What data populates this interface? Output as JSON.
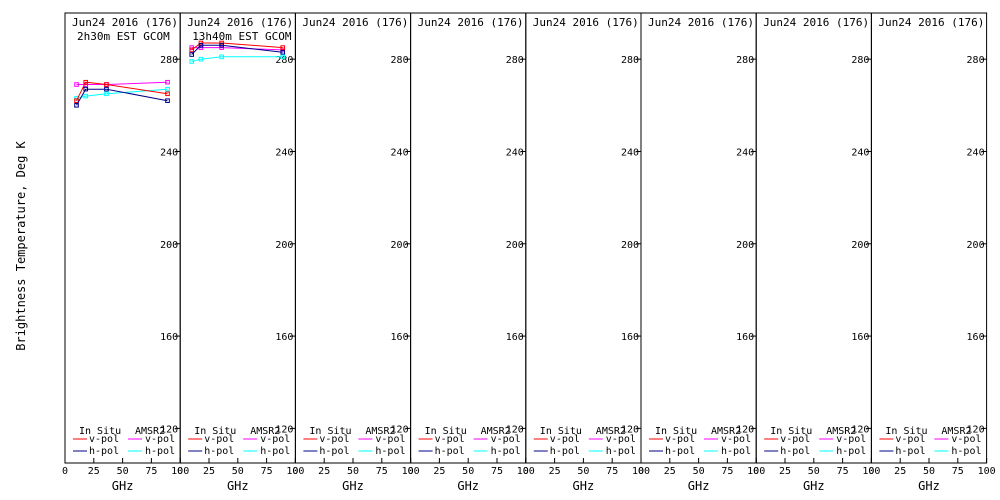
{
  "chart_data": {
    "type": "line",
    "ylabel": "Brightness Temperature, Deg K",
    "xlabel": "GHz",
    "xlim": [
      0,
      100
    ],
    "ylim": [
      105,
      300
    ],
    "xticks": [
      0,
      25,
      50,
      75,
      100
    ],
    "yticks": [
      120,
      160,
      200,
      240,
      280
    ],
    "grid": false,
    "legend": {
      "left_title": "In Situ",
      "right_title": "AMSR2",
      "left_items": [
        "v-pol",
        "h-pol"
      ],
      "right_items": [
        "v-pol",
        "h-pol"
      ]
    },
    "colors": {
      "insitu_v": "#ff0000",
      "insitu_h": "#00008b",
      "amsr2_v": "#ff00ff",
      "amsr2_h": "#00ffff",
      "frame": "#000000"
    },
    "panels": [
      {
        "header": [
          "Jun24 2016 (176)",
          "2h30m EST GCOM"
        ],
        "series": [
          {
            "key": "amsr2_v",
            "x": [
              10,
              18,
              36,
              89
            ],
            "y": [
              269,
              269,
              269,
              270
            ]
          },
          {
            "key": "amsr2_h",
            "x": [
              10,
              18,
              36,
              89
            ],
            "y": [
              263,
              264,
              265,
              267
            ]
          },
          {
            "key": "insitu_v",
            "x": [
              10,
              18,
              36,
              89
            ],
            "y": [
              262,
              270,
              269,
              265
            ]
          },
          {
            "key": "insitu_h",
            "x": [
              10,
              18,
              36,
              89
            ],
            "y": [
              260,
              267,
              267,
              262
            ]
          }
        ]
      },
      {
        "header": [
          "Jun24 2016 (176)",
          "13h40m EST GCOM"
        ],
        "series": [
          {
            "key": "amsr2_v",
            "x": [
              10,
              18,
              36,
              89
            ],
            "y": [
              285,
              285,
              285,
              284
            ]
          },
          {
            "key": "amsr2_h",
            "x": [
              10,
              18,
              36,
              89
            ],
            "y": [
              279,
              280,
              281,
              281
            ]
          },
          {
            "key": "insitu_v",
            "x": [
              10,
              18,
              36,
              89
            ],
            "y": [
              284,
              287,
              287,
              285
            ]
          },
          {
            "key": "insitu_h",
            "x": [
              10,
              18,
              36,
              89
            ],
            "y": [
              282,
              286,
              286,
              283
            ]
          }
        ]
      },
      {
        "header": [
          "Jun24 2016 (176)"
        ],
        "series": []
      },
      {
        "header": [
          "Jun24 2016 (176)"
        ],
        "series": []
      },
      {
        "header": [
          "Jun24 2016 (176)"
        ],
        "series": []
      },
      {
        "header": [
          "Jun24 2016 (176)"
        ],
        "series": []
      },
      {
        "header": [
          "Jun24 2016 (176)"
        ],
        "series": []
      },
      {
        "header": [
          "Jun24 2016 (176)"
        ],
        "series": []
      }
    ]
  }
}
